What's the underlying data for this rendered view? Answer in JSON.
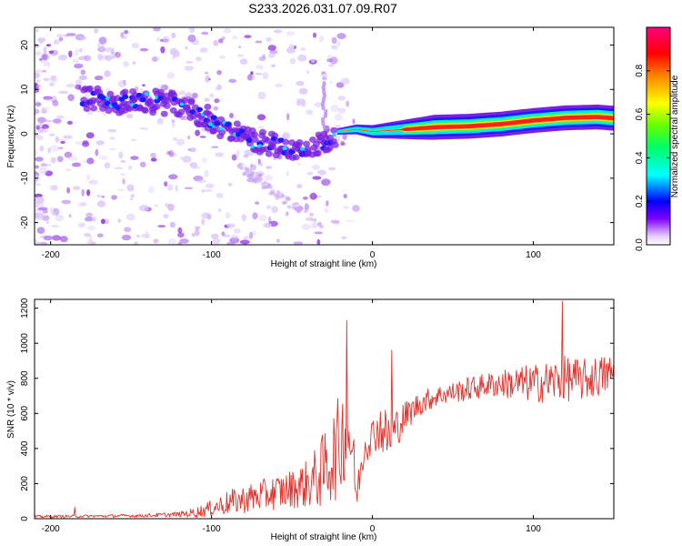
{
  "title": "S233.2026.031.07.09.R07",
  "chart_data": [
    {
      "type": "heatmap",
      "panel": "spectrogram",
      "xlabel": "Height of straight line (km)",
      "ylabel": "Frequency (Hz)",
      "xlim": [
        -210,
        150
      ],
      "ylim": [
        -25,
        24
      ],
      "xticks": [
        -200,
        -100,
        0,
        100
      ],
      "yticks": [
        20,
        10,
        0,
        -10,
        -20
      ],
      "ridge": {
        "x": [
          -175,
          -160,
          -140,
          -120,
          -105,
          -90,
          -75,
          -60,
          -45,
          -30,
          -22,
          -10,
          0,
          20,
          40,
          60,
          80,
          100,
          120,
          140,
          150
        ],
        "y": [
          8,
          7,
          7.5,
          6.5,
          4,
          1,
          -1.5,
          -2.5,
          -3.5,
          -2,
          0.5,
          1,
          0.5,
          1,
          1.5,
          1.7,
          2.2,
          3,
          3.6,
          3.8,
          3.5
        ]
      },
      "colorbar": {
        "label": "Normalized spectral amplitude",
        "range": [
          0.0,
          1.0
        ],
        "ticks": [
          0.0,
          0.2,
          0.4,
          0.6,
          0.8
        ],
        "tick_labels": [
          "0.0",
          "0.2",
          "0.4",
          "0.6",
          "0.8"
        ],
        "colors": [
          "#ffffff",
          "#8000ff",
          "#0000ff",
          "#00ffff",
          "#00ff00",
          "#ffff00",
          "#ff0000",
          "#ff0080"
        ]
      }
    },
    {
      "type": "line",
      "panel": "snr",
      "xlabel": "Height of straight line (km)",
      "ylabel": "SNR (10 * v/v)",
      "xlim": [
        -210,
        150
      ],
      "ylim": [
        0,
        1250
      ],
      "xticks": [
        -200,
        -100,
        0,
        100
      ],
      "yticks": [
        0,
        200,
        400,
        600,
        800,
        1000,
        1200
      ],
      "color": "#e8302a",
      "envelope": {
        "x": [
          -210,
          -170,
          -140,
          -120,
          -110,
          -100,
          -90,
          -80,
          -70,
          -60,
          -50,
          -40,
          -35,
          -30,
          -25,
          -20,
          -18,
          -15,
          -12,
          -10,
          -5,
          0,
          5,
          10,
          15,
          20,
          25,
          30,
          40,
          50,
          60,
          70,
          80,
          90,
          100,
          110,
          120,
          130,
          140,
          150
        ],
        "y": [
          12,
          15,
          18,
          25,
          35,
          60,
          90,
          110,
          130,
          150,
          170,
          200,
          230,
          280,
          350,
          420,
          500,
          520,
          360,
          120,
          420,
          480,
          520,
          460,
          520,
          580,
          620,
          660,
          700,
          720,
          740,
          760,
          770,
          770,
          770,
          780,
          800,
          790,
          810,
          830
        ],
        "noise_amp": [
          8,
          8,
          10,
          15,
          30,
          45,
          70,
          80,
          90,
          100,
          110,
          140,
          180,
          220,
          260,
          300,
          300,
          280,
          200,
          80,
          120,
          100,
          140,
          160,
          120,
          90,
          80,
          70,
          60,
          60,
          70,
          70,
          80,
          100,
          110,
          120,
          130,
          120,
          120,
          110
        ]
      },
      "peaks": [
        {
          "x": -16,
          "y": 1130
        },
        {
          "x": 118,
          "y": 1240
        },
        {
          "x": -185,
          "y": 65
        },
        {
          "x": 12,
          "y": 960
        }
      ]
    }
  ]
}
